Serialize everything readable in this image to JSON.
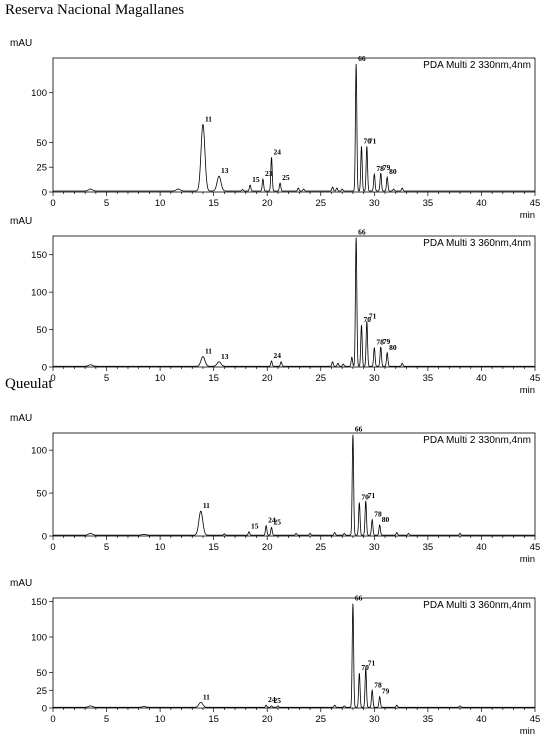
{
  "sections": [
    {
      "title": "Reserva Nacional Magallanes"
    },
    {
      "title": "Queulat"
    }
  ],
  "chart_data": [
    {
      "type": "line",
      "group": "Reserva Nacional Magallanes",
      "legend": "PDA Multi 2 330nm,4nm",
      "ylabel": "mAU",
      "xlabel": "min",
      "xlim": [
        0,
        45
      ],
      "ylim": [
        0,
        135
      ],
      "xticks": [
        0,
        5,
        10,
        15,
        20,
        25,
        30,
        35,
        40,
        45
      ],
      "yticks": [
        0,
        25,
        50,
        100
      ],
      "baseline": 1,
      "minor_peaks": [
        [
          3.5,
          2
        ],
        [
          11.7,
          2
        ],
        [
          17.7,
          1.5
        ],
        [
          22.9,
          3
        ],
        [
          23.4,
          2
        ],
        [
          26.1,
          4
        ],
        [
          26.5,
          3
        ],
        [
          27.0,
          2
        ],
        [
          31.8,
          2
        ],
        [
          32.6,
          3
        ]
      ],
      "peaks": [
        {
          "label": "11",
          "rt": 14.0,
          "height": 67
        },
        {
          "label": "13",
          "rt": 15.5,
          "height": 15
        },
        {
          "label": "15",
          "rt": 18.4,
          "height": 6
        },
        {
          "label": "23",
          "rt": 19.6,
          "height": 12
        },
        {
          "label": "24",
          "rt": 20.4,
          "height": 34
        },
        {
          "label": "25",
          "rt": 21.2,
          "height": 8
        },
        {
          "label": "66",
          "rt": 28.3,
          "height": 128
        },
        {
          "label": "70",
          "rt": 28.8,
          "height": 45
        },
        {
          "label": "71",
          "rt": 29.3,
          "height": 45
        },
        {
          "label": "78",
          "rt": 30.0,
          "height": 17
        },
        {
          "label": "79",
          "rt": 30.6,
          "height": 18
        },
        {
          "label": "80",
          "rt": 31.2,
          "height": 14
        }
      ]
    },
    {
      "type": "line",
      "group": "Reserva Nacional Magallanes",
      "legend": "PDA Multi 3 360nm,4nm",
      "ylabel": "mAU",
      "xlabel": "min",
      "xlim": [
        0,
        45
      ],
      "ylim": [
        0,
        175
      ],
      "xticks": [
        0,
        5,
        10,
        15,
        20,
        25,
        30,
        35,
        40,
        45
      ],
      "yticks": [
        0,
        50,
        100,
        150
      ],
      "baseline": 1,
      "minor_peaks": [
        [
          3.5,
          2
        ],
        [
          21.3,
          6
        ],
        [
          26.1,
          6
        ],
        [
          26.6,
          4
        ],
        [
          27.1,
          3
        ],
        [
          27.9,
          12
        ],
        [
          32.6,
          4
        ]
      ],
      "peaks": [
        {
          "label": "11",
          "rt": 14.0,
          "height": 13
        },
        {
          "label": "13",
          "rt": 15.5,
          "height": 6
        },
        {
          "label": "24",
          "rt": 20.4,
          "height": 7
        },
        {
          "label": "66",
          "rt": 28.3,
          "height": 172
        },
        {
          "label": "70",
          "rt": 28.8,
          "height": 55
        },
        {
          "label": "71",
          "rt": 29.3,
          "height": 60
        },
        {
          "label": "78",
          "rt": 30.0,
          "height": 25
        },
        {
          "label": "79",
          "rt": 30.6,
          "height": 26
        },
        {
          "label": "80",
          "rt": 31.2,
          "height": 18
        }
      ]
    },
    {
      "type": "line",
      "group": "Queulat",
      "legend": "PDA Multi 2 330nm,4nm",
      "ylabel": "mAU",
      "xlabel": "min",
      "xlim": [
        0,
        45
      ],
      "ylim": [
        0,
        120
      ],
      "xticks": [
        0,
        5,
        10,
        15,
        20,
        25,
        30,
        35,
        40,
        45
      ],
      "yticks": [
        0,
        50,
        100
      ],
      "baseline": 1,
      "minor_peaks": [
        [
          3.5,
          2
        ],
        [
          8.5,
          1
        ],
        [
          16.0,
          1.5
        ],
        [
          22.7,
          2
        ],
        [
          24.0,
          2
        ],
        [
          26.3,
          3
        ],
        [
          27.2,
          2
        ],
        [
          32.1,
          3
        ],
        [
          33.2,
          2
        ],
        [
          38.0,
          2
        ]
      ],
      "peaks": [
        {
          "label": "11",
          "rt": 13.8,
          "height": 28
        },
        {
          "label": "15",
          "rt": 18.3,
          "height": 4
        },
        {
          "label": "24",
          "rt": 19.9,
          "height": 11
        },
        {
          "label": "25",
          "rt": 20.4,
          "height": 9
        },
        {
          "label": "66",
          "rt": 28.0,
          "height": 117
        },
        {
          "label": "70",
          "rt": 28.6,
          "height": 38
        },
        {
          "label": "71",
          "rt": 29.2,
          "height": 40
        },
        {
          "label": "78",
          "rt": 29.8,
          "height": 18
        },
        {
          "label": "80",
          "rt": 30.5,
          "height": 12
        }
      ]
    },
    {
      "type": "line",
      "group": "Queulat",
      "legend": "PDA Multi 3 360nm,4nm",
      "ylabel": "mAU",
      "xlabel": "min",
      "xlim": [
        0,
        45
      ],
      "ylim": [
        0,
        155
      ],
      "xticks": [
        0,
        5,
        10,
        15,
        20,
        25,
        30,
        35,
        40,
        45
      ],
      "yticks": [
        0,
        25,
        50,
        100,
        150
      ],
      "baseline": 1,
      "minor_peaks": [
        [
          3.5,
          2
        ],
        [
          8.5,
          1
        ],
        [
          21.0,
          2
        ],
        [
          26.3,
          3
        ],
        [
          27.2,
          2
        ],
        [
          32.1,
          3
        ],
        [
          38.0,
          2
        ]
      ],
      "peaks": [
        {
          "label": "11",
          "rt": 13.8,
          "height": 7
        },
        {
          "label": "24",
          "rt": 19.9,
          "height": 3
        },
        {
          "label": "25",
          "rt": 20.4,
          "height": 2
        },
        {
          "label": "66",
          "rt": 28.0,
          "height": 146
        },
        {
          "label": "70",
          "rt": 28.6,
          "height": 48
        },
        {
          "label": "71",
          "rt": 29.2,
          "height": 55
        },
        {
          "label": "78",
          "rt": 29.8,
          "height": 24
        },
        {
          "label": "79",
          "rt": 30.5,
          "height": 15
        }
      ]
    }
  ]
}
